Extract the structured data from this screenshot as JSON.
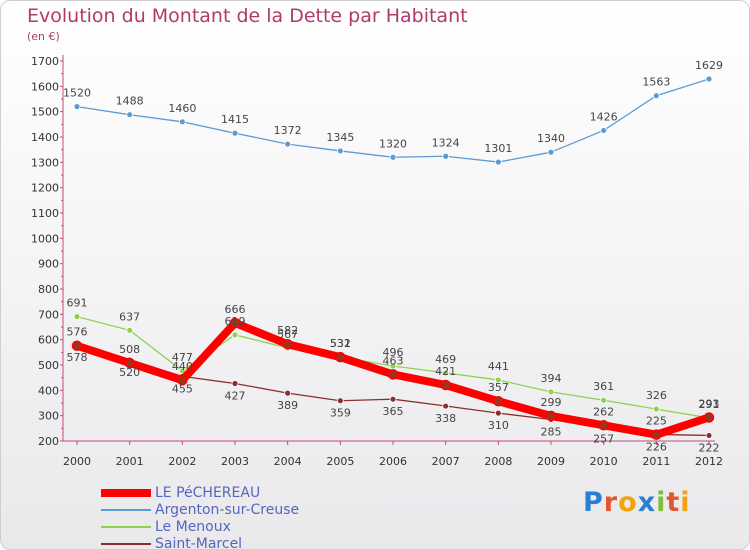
{
  "title": "Evolution du Montant de la Dette par Habitant",
  "subtitle": "(en €)",
  "logo": {
    "text": "Proxiti",
    "colors": [
      "#2a7fd0",
      "#e4572e",
      "#f2a20c",
      "#2a7fd0",
      "#7bbf3a",
      "#e4572e",
      "#f2a20c"
    ]
  },
  "chart_data": {
    "type": "line",
    "title": "Evolution du Montant de la Dette par Habitant",
    "ylabel": "(en €)",
    "xlabel": "",
    "ylim": [
      200,
      1700
    ],
    "yticks": [
      "200",
      "300",
      "400",
      "500",
      "600",
      "700",
      "800",
      "900",
      "1000",
      "1100",
      "1200",
      "1300",
      "1400",
      "1500",
      "1600",
      "1700"
    ],
    "categories": [
      "2000",
      "2001",
      "2002",
      "2003",
      "2004",
      "2005",
      "2006",
      "2007",
      "2008",
      "2009",
      "2010",
      "2011",
      "2012"
    ],
    "grid": false,
    "legend_placement": "bottom-left",
    "series": [
      {
        "name": "LE PéCHEREAU",
        "color": "#ff0000",
        "values": [
          576,
          508,
          440,
          666,
          582,
          531,
          463,
          421,
          357,
          299,
          262,
          225,
          293
        ]
      },
      {
        "name": "Argenton-sur-Creuse",
        "color": "#5b9bd5",
        "values": [
          1520,
          1488,
          1460,
          1415,
          1372,
          1345,
          1320,
          1324,
          1301,
          1340,
          1426,
          1563,
          1629
        ]
      },
      {
        "name": "Le Menoux",
        "color": "#8fd14f",
        "values": [
          691,
          637,
          477,
          619,
          567,
          532,
          496,
          469,
          441,
          394,
          361,
          326,
          291
        ]
      },
      {
        "name": "Saint-Marcel",
        "color": "#8b2e2e",
        "values": [
          578,
          520,
          455,
          427,
          389,
          359,
          365,
          338,
          310,
          285,
          257,
          226,
          222
        ]
      }
    ]
  }
}
